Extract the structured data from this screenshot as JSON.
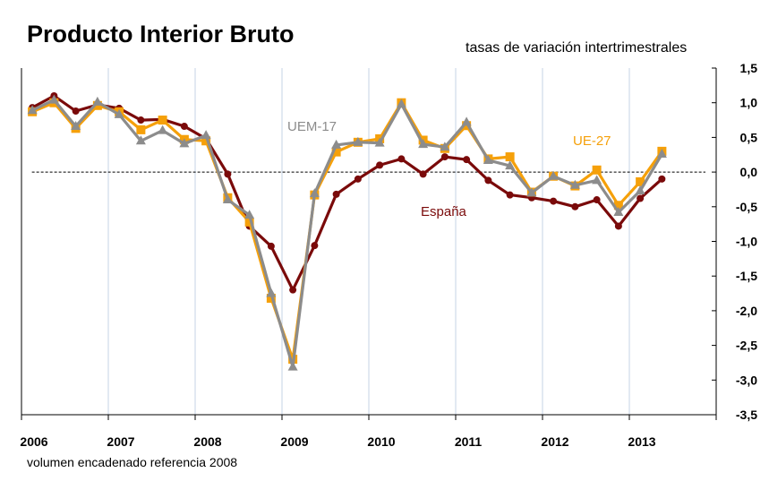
{
  "chart_data": {
    "type": "line",
    "title": "Producto Interior Bruto",
    "subtitle": "tasas de variación intertrimestrales",
    "footnote": "volumen encadenado  referencia 2008",
    "ylim": [
      -3.5,
      1.5
    ],
    "yticks": [
      "1,5",
      "1,0",
      "0,5",
      "0,0",
      "-0,5",
      "-1,0",
      "-1,5",
      "-2,0",
      "-2,5",
      "-3,0",
      "-3,5"
    ],
    "ytick_values": [
      1.5,
      1.0,
      0.5,
      0.0,
      -0.5,
      -1.0,
      -1.5,
      -2.0,
      -2.5,
      -3.0,
      -3.5
    ],
    "xlim": [
      2006,
      2014
    ],
    "xticks": [
      "2006",
      "2007",
      "2008",
      "2009",
      "2010",
      "2011",
      "2012",
      "2013"
    ],
    "x_start_year": 2006,
    "quarters_per_year": 4,
    "grid": "vertical",
    "series": [
      {
        "name": "España",
        "color": "#7a0a0a",
        "marker": "circle",
        "values": [
          0.93,
          1.1,
          0.88,
          0.97,
          0.92,
          0.75,
          0.76,
          0.66,
          0.48,
          -0.03,
          -0.78,
          -1.07,
          -1.7,
          -1.06,
          -0.32,
          -0.1,
          0.1,
          0.19,
          -0.03,
          0.22,
          0.18,
          -0.12,
          -0.33,
          -0.37,
          -0.42,
          -0.5,
          -0.4,
          -0.78,
          -0.38,
          -0.1
        ]
      },
      {
        "name": "UE-27",
        "color": "#f5a00a",
        "marker": "square",
        "values": [
          0.87,
          1.0,
          0.63,
          0.96,
          0.87,
          0.61,
          0.75,
          0.47,
          0.45,
          -0.37,
          -0.72,
          -1.82,
          -2.7,
          -0.33,
          0.29,
          0.43,
          0.48,
          1.0,
          0.46,
          0.34,
          0.67,
          0.19,
          0.22,
          -0.29,
          -0.06,
          -0.2,
          0.03,
          -0.48,
          -0.14,
          0.3
        ]
      },
      {
        "name": "UEM-17",
        "color": "#8c8c8c",
        "marker": "triangle",
        "values": [
          0.89,
          1.04,
          0.66,
          1.01,
          0.83,
          0.45,
          0.6,
          0.41,
          0.53,
          -0.4,
          -0.62,
          -1.75,
          -2.81,
          -0.31,
          0.39,
          0.43,
          0.42,
          0.98,
          0.4,
          0.36,
          0.72,
          0.17,
          0.09,
          -0.3,
          -0.06,
          -0.19,
          -0.12,
          -0.58,
          -0.27,
          0.26
        ]
      }
    ],
    "series_labels": {
      "UEM-17": {
        "text": "UEM-17",
        "color": "#8c8c8c"
      },
      "UE-27": {
        "text": "UE-27",
        "color": "#f5a00a"
      },
      "España": {
        "text": "España",
        "color": "#7a0a0a"
      }
    }
  }
}
